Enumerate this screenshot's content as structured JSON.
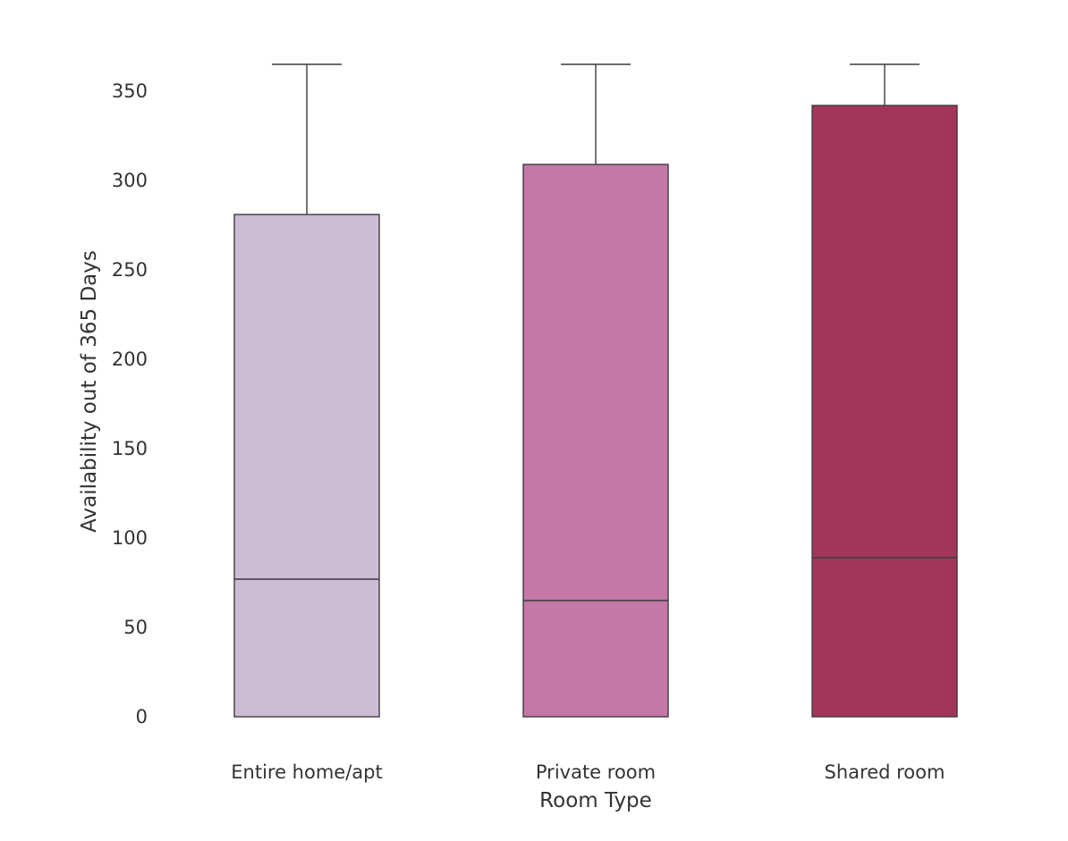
{
  "chart_data": {
    "type": "box",
    "xlabel": "Room Type",
    "ylabel": "Availability out of 365 Days",
    "ylim": [
      0,
      365
    ],
    "yticks": [
      0,
      50,
      100,
      150,
      200,
      250,
      300,
      350
    ],
    "grid": false,
    "categories": [
      "Entire home/apt",
      "Private room",
      "Shared room"
    ],
    "boxes": [
      {
        "category": "Entire home/apt",
        "min": 0,
        "q1": 0,
        "median": 77,
        "q3": 281,
        "max": 365,
        "color": "#cdbcd3"
      },
      {
        "category": "Private room",
        "min": 0,
        "q1": 0,
        "median": 65,
        "q3": 309,
        "max": 365,
        "color": "#c577a7"
      },
      {
        "category": "Shared room",
        "min": 0,
        "q1": 0,
        "median": 89,
        "q3": 342,
        "max": 365,
        "color": "#a4355a"
      }
    ],
    "stroke_color": "#3d3d3d"
  }
}
